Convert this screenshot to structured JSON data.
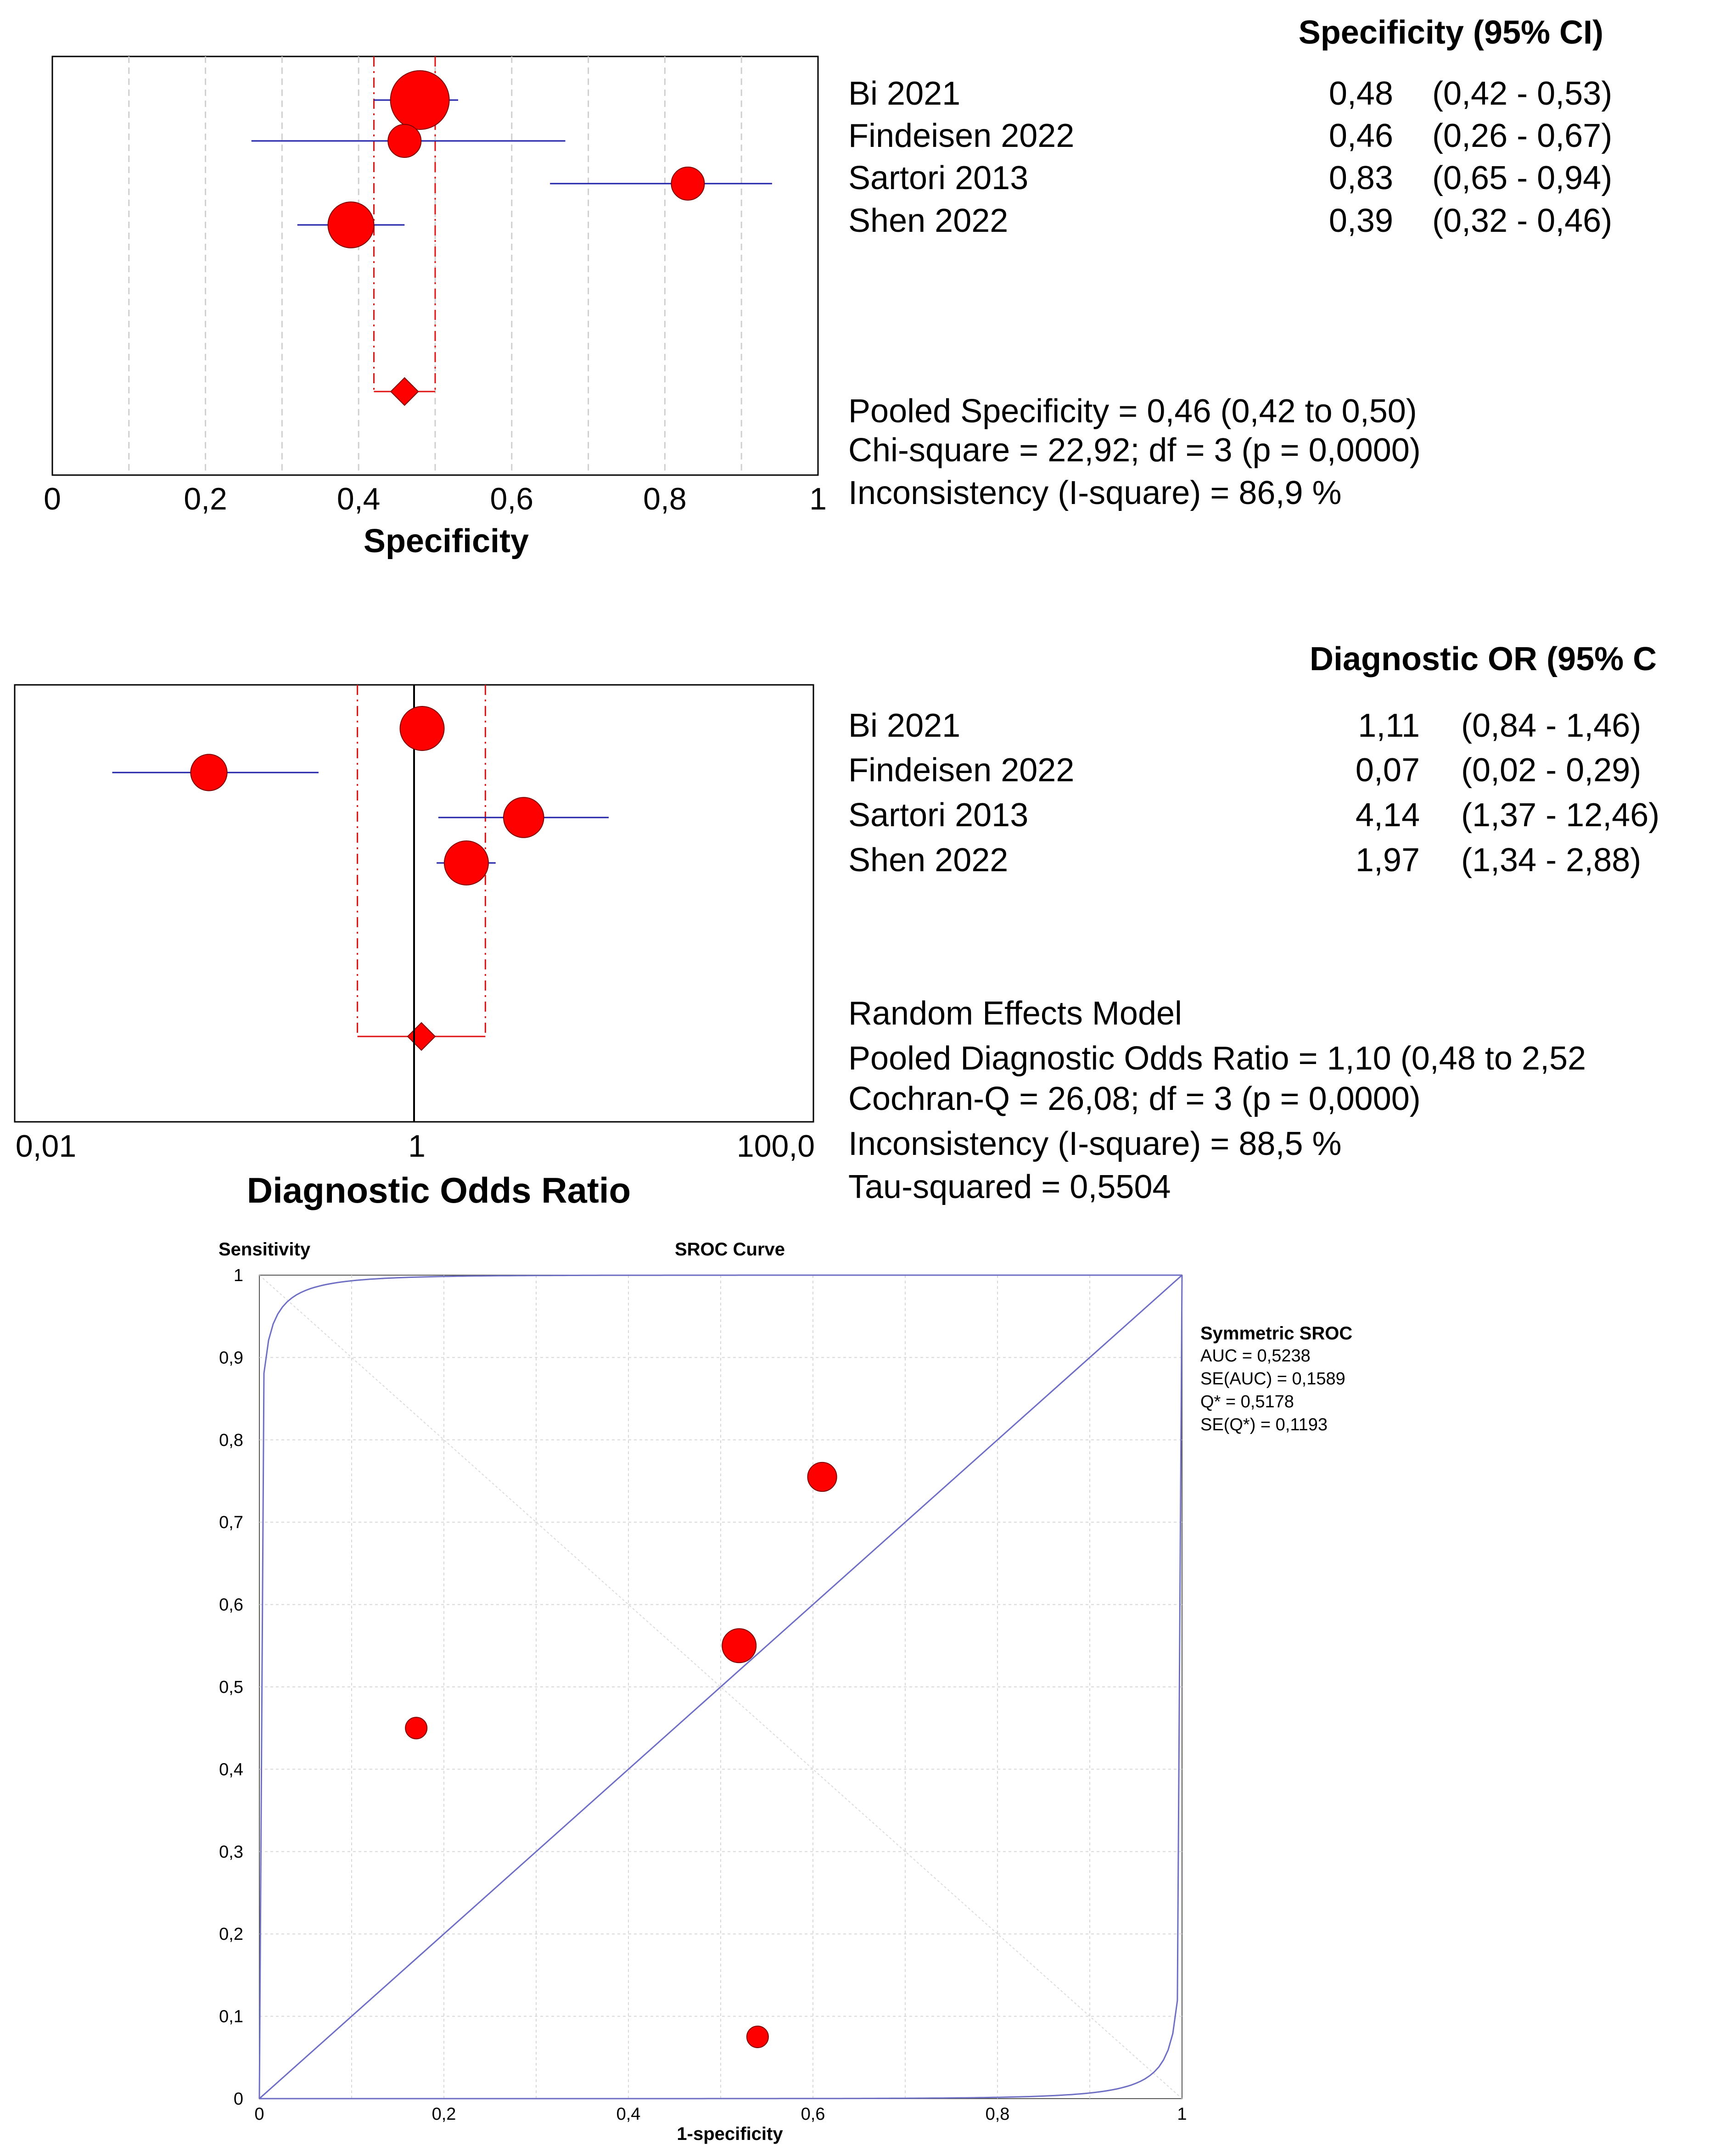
{
  "colors": {
    "marker": "#ff0000",
    "marker_stroke": "#800000",
    "ci_line": "#1f1fa8",
    "pooled_line": "#e01010",
    "curve": "#6e6ec4",
    "grid": "#cfcfcf",
    "frame": "#000000"
  },
  "chart_data": [
    {
      "type": "forest",
      "name": "specificity",
      "xlabel": "Specificity",
      "column_header": "Specificity (95% CI)",
      "xlim": [
        0,
        1
      ],
      "ticks": [
        0,
        0.2,
        0.4,
        0.6,
        0.8,
        1
      ],
      "tick_labels": [
        "0",
        "0,2",
        "0,4",
        "0,6",
        "0,8",
        "1"
      ],
      "studies": [
        {
          "name": "Bi 2021",
          "value": 0.48,
          "lo": 0.42,
          "hi": 0.53,
          "value_label": "0,48",
          "ci_label": "(0,42 - 0,53)",
          "weight": 3
        },
        {
          "name": "Findeisen 2022",
          "value": 0.46,
          "lo": 0.26,
          "hi": 0.67,
          "value_label": "0,46",
          "ci_label": "(0,26 - 0,67)",
          "weight": 1
        },
        {
          "name": "Sartori 2013",
          "value": 0.83,
          "lo": 0.65,
          "hi": 0.94,
          "value_label": "0,83",
          "ci_label": "(0,65 - 0,94)",
          "weight": 1
        },
        {
          "name": "Shen 2022",
          "value": 0.39,
          "lo": 0.32,
          "hi": 0.46,
          "value_label": "0,39",
          "ci_label": "(0,32 - 0,46)",
          "weight": 2
        }
      ],
      "pooled": {
        "value": 0.46,
        "lo": 0.42,
        "hi": 0.5
      },
      "summary": [
        "Pooled Specificity = 0,46 (0,42 to 0,50)",
        "Chi-square = 22,92; df =  3 (p = 0,0000)",
        "Inconsistency (I-square) = 86,9 %"
      ]
    },
    {
      "type": "forest",
      "name": "diagnostic-or",
      "xlabel": "Diagnostic Odds Ratio",
      "column_header": "Diagnostic OR (95% C",
      "scale": "log",
      "xlim": [
        0.01,
        100
      ],
      "ticks": [
        0.01,
        1,
        100
      ],
      "tick_labels": [
        "0,01",
        "1",
        "100,0"
      ],
      "reference_line": 1,
      "studies": [
        {
          "name": "Bi 2021",
          "value": 1.11,
          "lo": 0.84,
          "hi": 1.46,
          "value_label": "1,11",
          "ci_label": "(0,84 - 1,46)",
          "weight": 2
        },
        {
          "name": "Findeisen 2022",
          "value": 0.07,
          "lo": 0.02,
          "hi": 0.29,
          "value_label": "0,07",
          "ci_label": "(0,02 - 0,29)",
          "weight": 1.4
        },
        {
          "name": "Sartori 2013",
          "value": 4.14,
          "lo": 1.37,
          "hi": 12.46,
          "value_label": "4,14",
          "ci_label": "(1,37 - 12,46)",
          "weight": 1.7
        },
        {
          "name": "Shen 2022",
          "value": 1.97,
          "lo": 1.34,
          "hi": 2.88,
          "value_label": "1,97",
          "ci_label": "(1,34 - 2,88)",
          "weight": 2
        }
      ],
      "pooled": {
        "value": 1.1,
        "lo": 0.48,
        "hi": 2.52
      },
      "summary": [
        "Random Effects Model",
        "Pooled Diagnostic Odds Ratio = 1,10 (0,48 to 2,52",
        "Cochran-Q = 26,08; df =  3 (p = 0,0000)",
        "Inconsistency (I-square) = 88,5 %",
        "Tau-squared = 0,5504"
      ]
    },
    {
      "type": "scatter",
      "name": "sroc",
      "title": "SROC Curve",
      "xlabel": "1-specificity",
      "ylabel": "Sensitivity",
      "xlim": [
        0,
        1
      ],
      "ylim": [
        0,
        1
      ],
      "x_ticks": [
        "0",
        "0,2",
        "0,4",
        "0,6",
        "0,8",
        "1"
      ],
      "y_ticks": [
        "0",
        "0,1",
        "0,2",
        "0,3",
        "0,4",
        "0,5",
        "0,6",
        "0,7",
        "0,8",
        "0,9",
        "1"
      ],
      "grid": true,
      "points": [
        {
          "x": 0.52,
          "y": 0.55,
          "size": 3
        },
        {
          "x": 0.61,
          "y": 0.755,
          "size": 2.4
        },
        {
          "x": 0.17,
          "y": 0.45,
          "size": 1.5
        },
        {
          "x": 0.54,
          "y": 0.075,
          "size": 1.5
        }
      ],
      "legend": {
        "title": "Symmetric SROC",
        "lines": [
          "AUC = 0,5238",
          "SE(AUC) = 0,1589",
          "Q* = 0,5178",
          "SE(Q*) = 0,1193"
        ]
      }
    }
  ]
}
